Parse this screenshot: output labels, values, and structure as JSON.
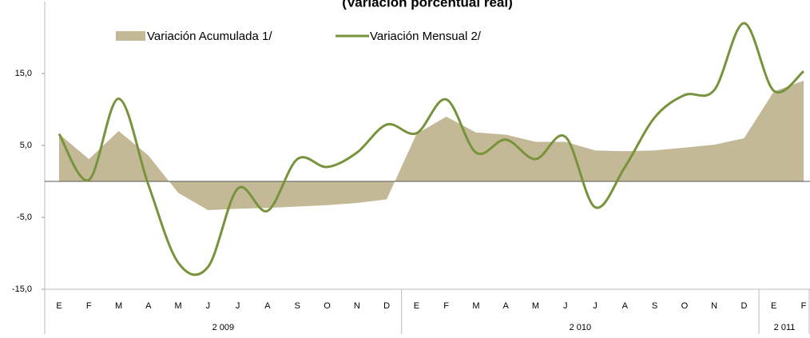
{
  "chart_data": {
    "type": "area-line",
    "title": "(Variación porcentual real)",
    "categories": [
      "E",
      "F",
      "M",
      "A",
      "M",
      "J",
      "J",
      "A",
      "S",
      "O",
      "N",
      "D",
      "E",
      "F",
      "M",
      "A",
      "M",
      "J",
      "J",
      "A",
      "S",
      "O",
      "N",
      "D",
      "E",
      "F"
    ],
    "groups": [
      "2 009",
      "2 010",
      "2 011"
    ],
    "series": [
      {
        "name": "Variación Acumulada 1/",
        "kind": "area",
        "color": "#c4b997",
        "values": [
          6.6,
          3.1,
          7.0,
          3.6,
          -1.6,
          -4.0,
          -3.8,
          -3.7,
          -3.5,
          -3.3,
          -3.0,
          -2.5,
          6.6,
          9.0,
          6.8,
          6.5,
          5.5,
          5.5,
          4.3,
          4.2,
          4.3,
          4.7,
          5.1,
          6.0,
          12.5,
          14.0
        ]
      },
      {
        "name": "Variación Mensual 2/",
        "kind": "line",
        "color": "#77933c",
        "values": [
          6.6,
          0.2,
          11.5,
          -0.5,
          -11.3,
          -11.9,
          -1.0,
          -4.1,
          3.1,
          2.0,
          4.0,
          7.9,
          6.7,
          11.4,
          4.0,
          5.8,
          3.1,
          6.2,
          -3.6,
          2.0,
          8.9,
          12.0,
          12.7,
          22.0,
          12.6,
          15.3
        ]
      }
    ],
    "ylim": [
      -15,
      25
    ],
    "yticks": [
      {
        "value": -15,
        "label": "-15,0"
      },
      {
        "value": -5,
        "label": "-5,0"
      },
      {
        "value": 5,
        "label": "5,0"
      },
      {
        "value": 15,
        "label": "15,0"
      }
    ],
    "grid": false
  }
}
